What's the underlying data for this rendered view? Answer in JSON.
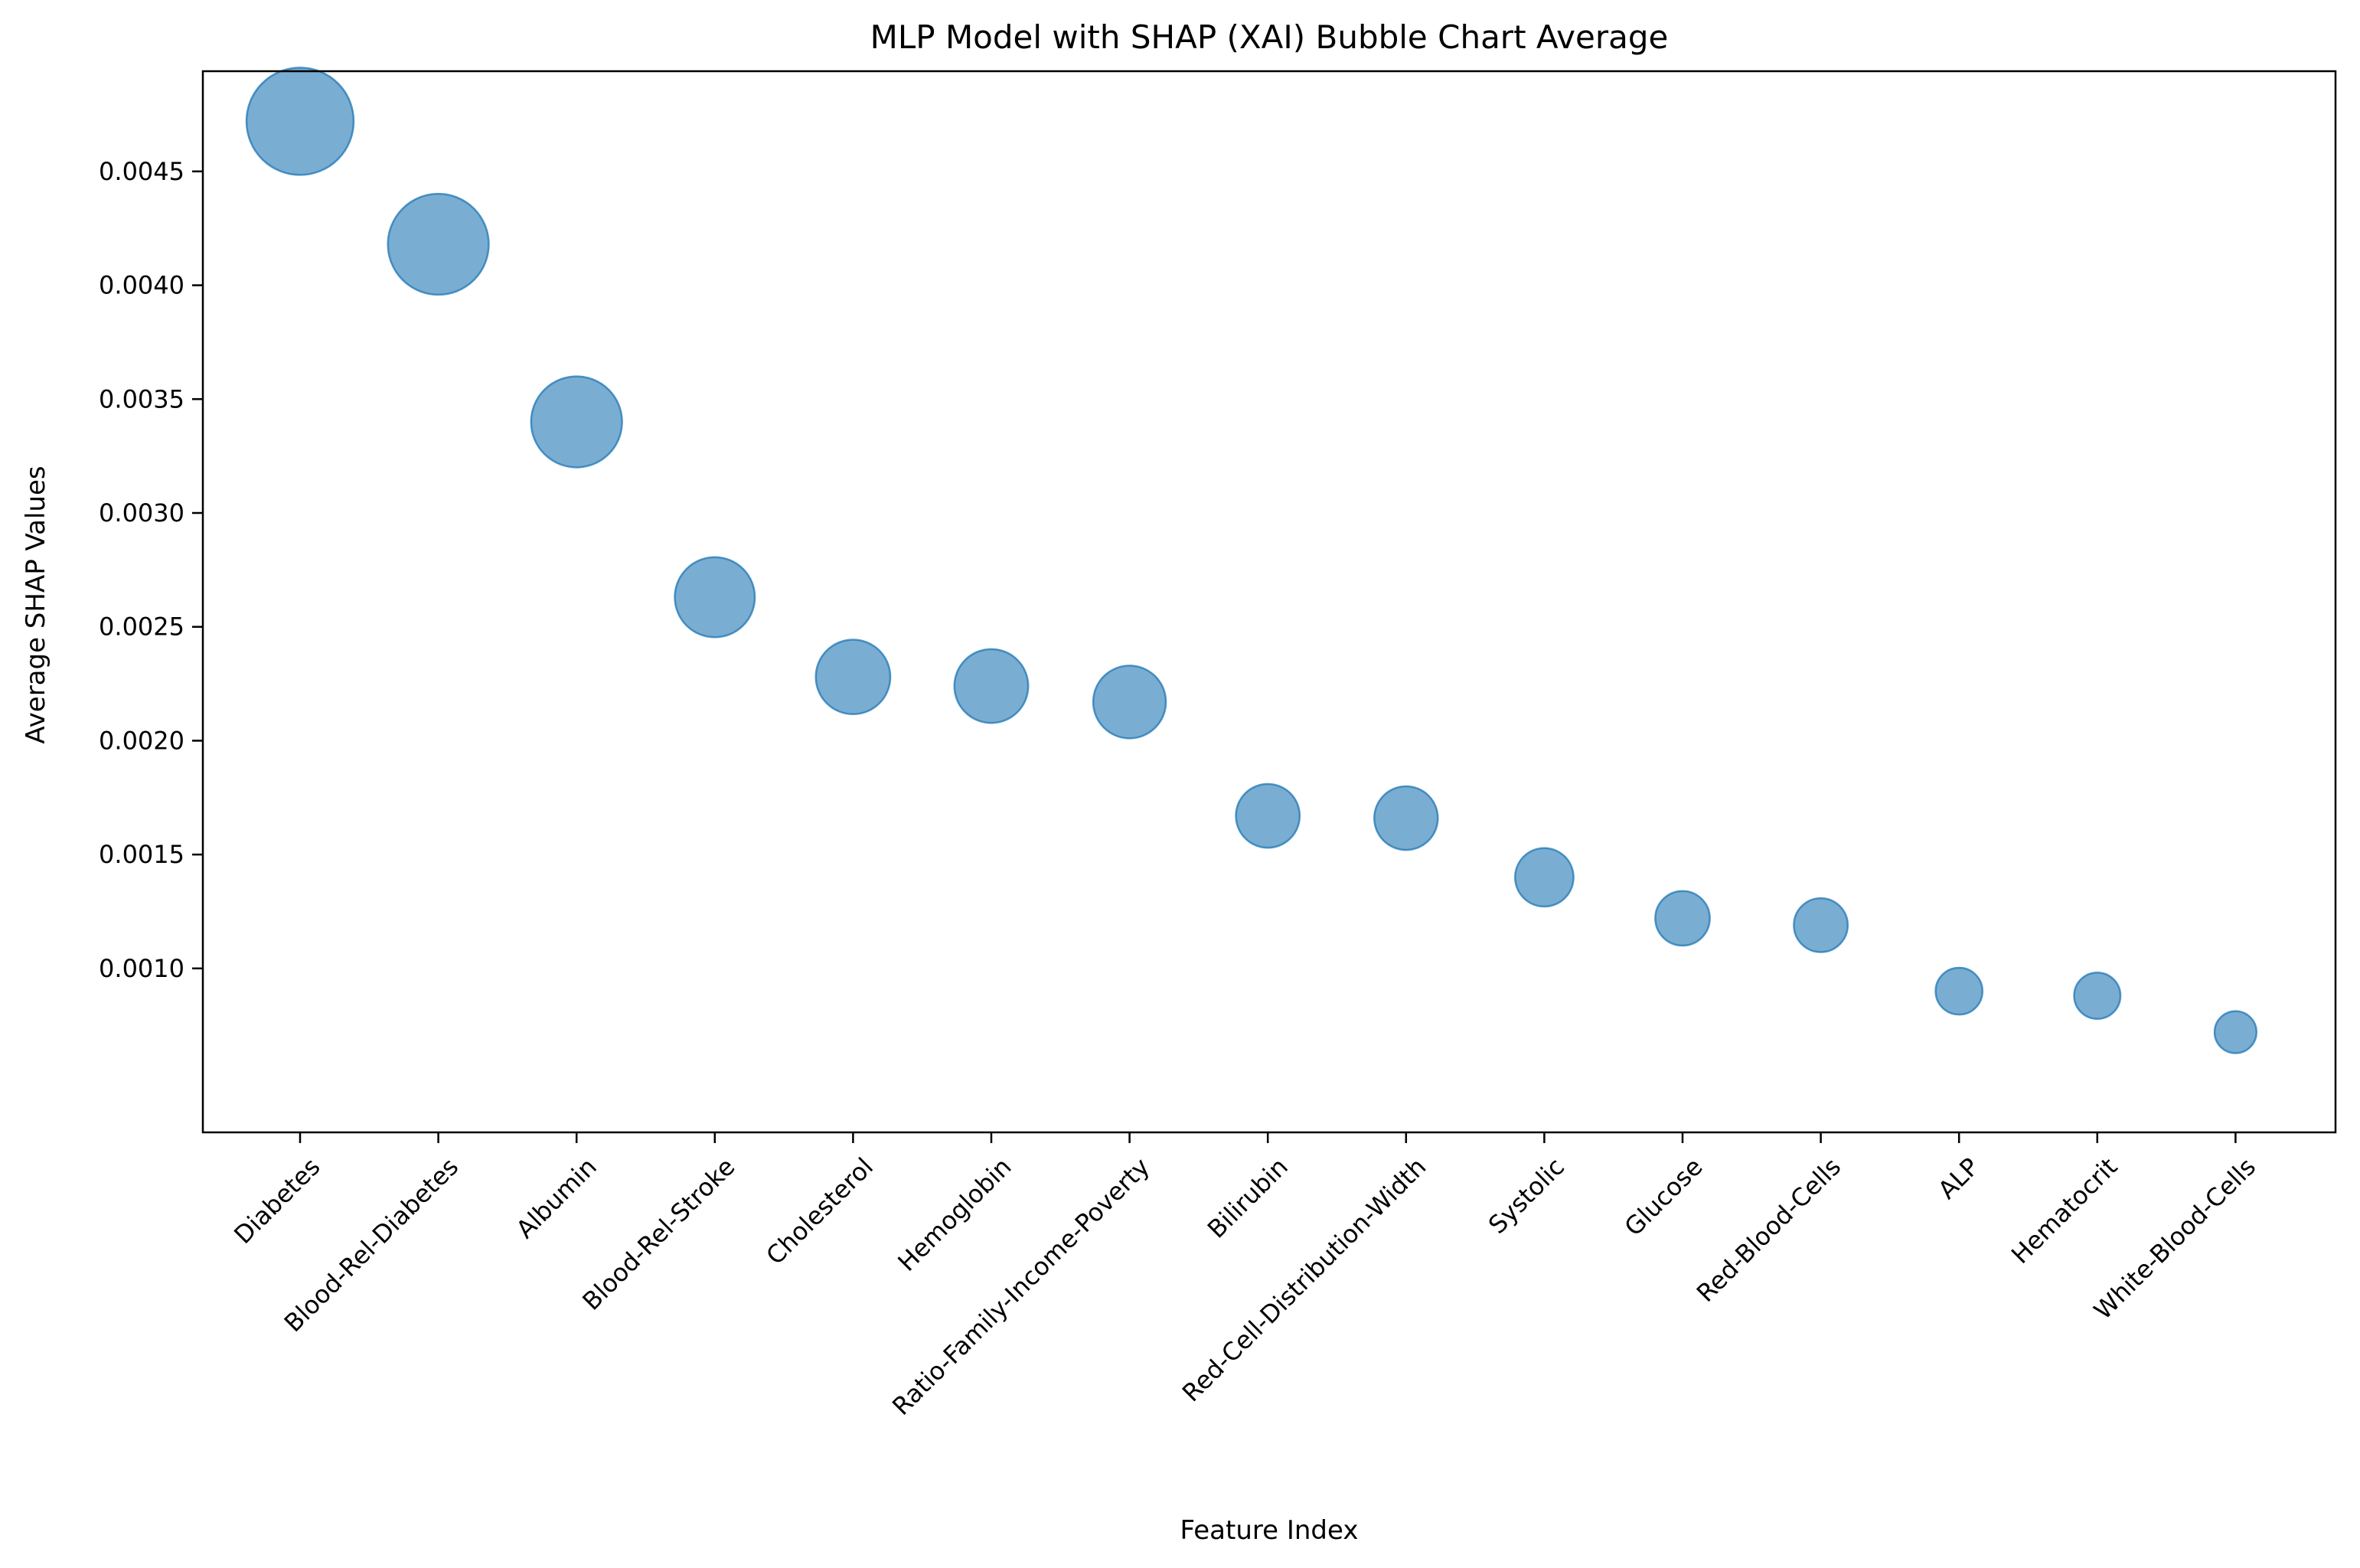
{
  "chart_data": {
    "type": "scatter",
    "title": "MLP Model with SHAP (XAI) Bubble Chart Average",
    "xlabel": "Feature Index",
    "ylabel": "Average SHAP Values",
    "categories": [
      "Diabetes",
      "Blood-Rel-Diabetes",
      "Albumin",
      "Blood-Rel-Stroke",
      "Cholesterol",
      "Hemoglobin",
      "Ratio-Family-Income-Poverty",
      "Bilirubin",
      "Red-Cell-Distribution-Width",
      "Systolic",
      "Glucose",
      "Red-Blood-Cells",
      "ALP",
      "Hematocrit",
      "White-Blood-Cells"
    ],
    "values": [
      0.00472,
      0.00418,
      0.0034,
      0.00263,
      0.00228,
      0.00224,
      0.00217,
      0.00167,
      0.00166,
      0.0014,
      0.00122,
      0.00119,
      0.0009,
      0.00088,
      0.00072
    ],
    "ylim": [
      0.00028,
      0.00494
    ],
    "yticks": [
      "0.0010",
      "0.0015",
      "0.0020",
      "0.0025",
      "0.0030",
      "0.0035",
      "0.0040",
      "0.0045"
    ],
    "grid": false,
    "legend": "none",
    "color": "#1f77b4"
  }
}
